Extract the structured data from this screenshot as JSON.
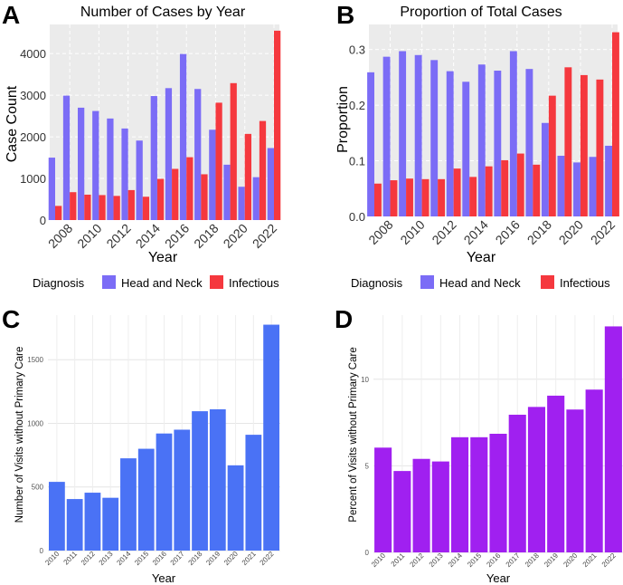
{
  "panel_letters": [
    "A",
    "B",
    "C",
    "D"
  ],
  "legend": {
    "title": "Diagnosis",
    "entries": [
      "Head and Neck",
      "Infectious"
    ],
    "colors": [
      "#7b6cf6",
      "#f5383e"
    ]
  },
  "chart_data": [
    {
      "panel": "A",
      "type": "bar",
      "title": "Number of Cases by Year",
      "xlabel": "Year",
      "ylabel": "Case Count",
      "categories": [
        2007,
        2008,
        2009,
        2010,
        2011,
        2012,
        2013,
        2014,
        2015,
        2016,
        2017,
        2018,
        2019,
        2020,
        2021,
        2022
      ],
      "tick_labels": [
        "2008",
        "2010",
        "2012",
        "2014",
        "2016",
        "2018",
        "2020",
        "2022"
      ],
      "yticks": [
        "0",
        "1000",
        "2000",
        "3000",
        "4000"
      ],
      "ylim": [
        0,
        4700
      ],
      "series": [
        {
          "name": "Head and Neck",
          "color": "#7b6cf6",
          "values": [
            1500,
            2990,
            2700,
            2620,
            2440,
            2200,
            1910,
            2980,
            3170,
            3990,
            3150,
            2170,
            1330,
            800,
            1030,
            1730
          ]
        },
        {
          "name": "Infectious",
          "color": "#f5383e",
          "values": [
            340,
            670,
            610,
            600,
            580,
            720,
            560,
            990,
            1230,
            1510,
            1100,
            2820,
            3290,
            2070,
            2380,
            4550
          ]
        }
      ]
    },
    {
      "panel": "B",
      "type": "bar",
      "title": "Proportion of Total Cases",
      "xlabel": "Year",
      "ylabel": "Proportion",
      "categories": [
        2007,
        2008,
        2009,
        2010,
        2011,
        2012,
        2013,
        2014,
        2015,
        2016,
        2017,
        2018,
        2019,
        2020,
        2021,
        2022
      ],
      "tick_labels": [
        "2008",
        "2010",
        "2012",
        "2014",
        "2016",
        "2018",
        "2020",
        "2022"
      ],
      "yticks": [
        "0.0",
        "0.1",
        "0.2",
        "0.3"
      ],
      "ylim": [
        0,
        0.345
      ],
      "series": [
        {
          "name": "Head and Neck",
          "color": "#7b6cf6",
          "values": [
            0.259,
            0.287,
            0.297,
            0.29,
            0.281,
            0.261,
            0.242,
            0.273,
            0.262,
            0.297,
            0.265,
            0.168,
            0.109,
            0.097,
            0.107,
            0.127
          ]
        },
        {
          "name": "Infectious",
          "color": "#f5383e",
          "values": [
            0.059,
            0.065,
            0.068,
            0.067,
            0.067,
            0.086,
            0.071,
            0.09,
            0.101,
            0.113,
            0.093,
            0.217,
            0.268,
            0.254,
            0.246,
            0.331
          ]
        }
      ]
    },
    {
      "panel": "C",
      "type": "bar",
      "title": "",
      "xlabel": "Year",
      "ylabel": "Number of Visits without Primary Care",
      "categories": [
        "2010",
        "2011",
        "2012",
        "2013",
        "2014",
        "2015",
        "2016",
        "2017",
        "2018",
        "2019",
        "2020",
        "2021",
        "2022"
      ],
      "yticks": [
        "0",
        "500",
        "1000",
        "1500"
      ],
      "ylim": [
        0,
        1850
      ],
      "color": "#4a72f5",
      "values": [
        540,
        405,
        455,
        415,
        725,
        800,
        920,
        950,
        1095,
        1110,
        670,
        910,
        1775
      ]
    },
    {
      "panel": "D",
      "type": "bar",
      "title": "",
      "xlabel": "Year",
      "ylabel": "Percent of Visits without Primary Care",
      "categories": [
        "2010",
        "2011",
        "2012",
        "2013",
        "2014",
        "2015",
        "2016",
        "2017",
        "2018",
        "2019",
        "2020",
        "2021",
        "2022"
      ],
      "yticks": [
        "0",
        "5",
        "10"
      ],
      "ylim": [
        0,
        13.7
      ],
      "color": "#a020f0",
      "values": [
        6.05,
        4.7,
        5.4,
        5.25,
        6.65,
        6.65,
        6.85,
        7.95,
        8.4,
        9.05,
        8.25,
        9.4,
        13.05
      ]
    }
  ]
}
